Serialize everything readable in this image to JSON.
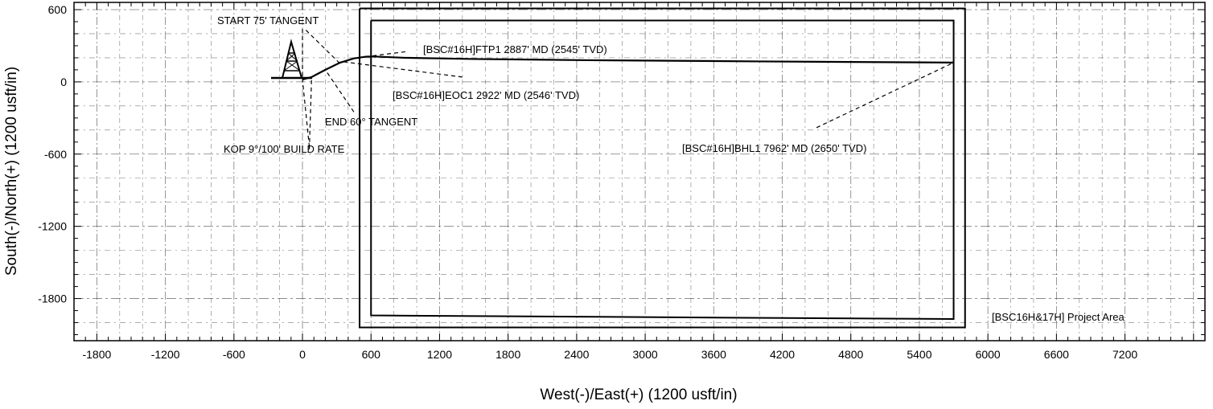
{
  "chart_data": {
    "type": "line",
    "title": "",
    "xlabel": "West(-)/East(+) (1200 usft/in)",
    "ylabel": "South(-)/North(+) (1200 usft/in)",
    "xlim": [
      -2000,
      7900
    ],
    "ylim": [
      -2150,
      660
    ],
    "grid": true,
    "x_ticks": [
      -1800,
      -1200,
      -600,
      0,
      600,
      1200,
      1800,
      2400,
      3000,
      3600,
      4200,
      4800,
      5400,
      6000,
      6600,
      7200
    ],
    "y_ticks": [
      600,
      0,
      -600,
      -1200,
      -1800
    ],
    "series": [
      {
        "role": "well-path",
        "x": [
          0,
          80,
          200,
          330,
          450,
          560,
          640,
          900,
          1500,
          2500,
          4000,
          5700
        ],
        "y": [
          20,
          40,
          100,
          160,
          195,
          210,
          210,
          200,
          190,
          180,
          170,
          160
        ]
      },
      {
        "role": "project-area-outer",
        "x": [
          500,
          5800,
          5800,
          500,
          500
        ],
        "y": [
          610,
          610,
          -2040,
          -2040,
          610
        ]
      },
      {
        "role": "hardline-inner",
        "x": [
          600,
          5700,
          5700,
          600,
          600
        ],
        "y": [
          510,
          510,
          -1970,
          -1940,
          510
        ]
      }
    ],
    "annotations": [
      {
        "text": "START 75' TANGENT",
        "x": 0,
        "y": 410
      },
      {
        "text": "[BSC#16H]FTP1 2887' MD (2545' TVD)",
        "x": 650,
        "y": 250
      },
      {
        "text": "[BSC#16H]EOC1 2922' MD (2546' TVD)",
        "x": 1400,
        "y": 60
      },
      {
        "text": "END 60° TANGENT",
        "x": 450,
        "y": -290
      },
      {
        "text": "KOP 9°/100' BUILD RATE",
        "x": 60,
        "y": -560
      },
      {
        "text": "[BSC#16H]BHL1 7962' MD (2650' TVD)",
        "x": 5700,
        "y": 150
      },
      {
        "text": "[BSC16H&17H] Project Area",
        "x": 5800,
        "y": -1950
      }
    ]
  },
  "icons": {
    "rig": "drilling-rig-icon"
  }
}
